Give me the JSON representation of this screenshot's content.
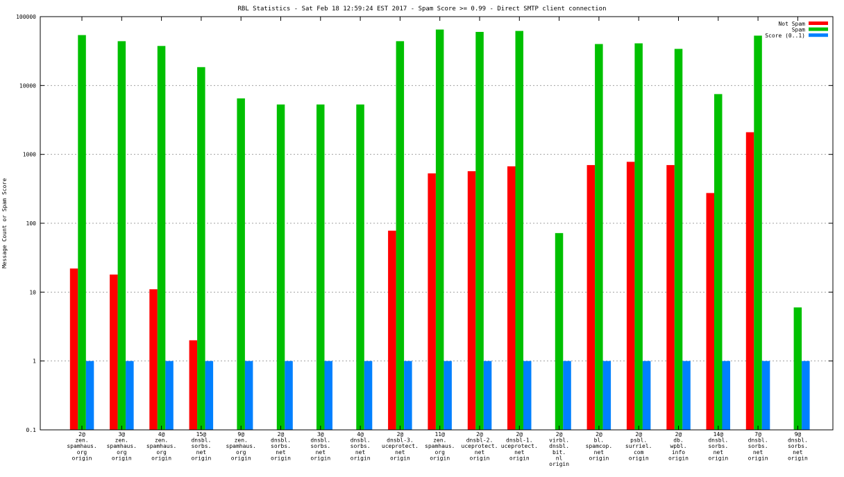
{
  "chart_data": {
    "type": "bar",
    "title": "RBL Statistics - Sat Feb 18 12:59:24 EST 2017 - Spam Score >= 0.99 - Direct SMTP client connection",
    "ylabel": "Message Count or Spam Score",
    "xlabel": "",
    "yscale": "log",
    "ylim": [
      0.1,
      100000
    ],
    "yticks": [
      "0.1",
      "1",
      "10",
      "100",
      "1000",
      "10000",
      "100000"
    ],
    "grid": true,
    "legend_position": "top-right",
    "categories": [
      [
        "2@",
        "zen.",
        "spamhaus.",
        "org",
        "origin"
      ],
      [
        "3@",
        "zen.",
        "spamhaus.",
        "org",
        "origin"
      ],
      [
        "4@",
        "zen.",
        "spamhaus.",
        "org",
        "origin"
      ],
      [
        "15@",
        "dnsbl.",
        "sorbs.",
        "net",
        "origin"
      ],
      [
        "9@",
        "zen.",
        "spamhaus.",
        "org",
        "origin"
      ],
      [
        "2@",
        "dnsbl.",
        "sorbs.",
        "net",
        "origin"
      ],
      [
        "3@",
        "dnsbl.",
        "sorbs.",
        "net",
        "origin"
      ],
      [
        "4@",
        "dnsbl.",
        "sorbs.",
        "net",
        "origin"
      ],
      [
        "2@",
        "dnsbl-3.",
        "uceprotect.",
        "net",
        "origin"
      ],
      [
        "11@",
        "zen.",
        "spamhaus.",
        "org",
        "origin"
      ],
      [
        "2@",
        "dnsbl-2.",
        "uceprotect.",
        "net",
        "origin"
      ],
      [
        "2@",
        "dnsbl-1.",
        "uceprotect.",
        "net",
        "origin"
      ],
      [
        "2@",
        "virbl.",
        "dnsbl.",
        "bit.",
        "nl",
        "origin"
      ],
      [
        "2@",
        "bl.",
        "spamcop.",
        "net",
        "origin"
      ],
      [
        "2@",
        "psbl.",
        "surriel.",
        "com",
        "origin"
      ],
      [
        "2@",
        "db.",
        "wpbl.",
        "info",
        "origin"
      ],
      [
        "14@",
        "dnsbl.",
        "sorbs.",
        "net",
        "origin"
      ],
      [
        "7@",
        "dnsbl.",
        "sorbs.",
        "net",
        "origin"
      ],
      [
        "9@",
        "dnsbl.",
        "sorbs.",
        "net",
        "origin"
      ]
    ],
    "series": [
      {
        "name": "Not Spam",
        "color": "#ff0000",
        "values": [
          22,
          18,
          11,
          2,
          null,
          null,
          null,
          null,
          78,
          530,
          570,
          670,
          null,
          700,
          780,
          700,
          275,
          2100,
          null
        ]
      },
      {
        "name": "Spam",
        "color": "#00c000",
        "values": [
          54000,
          44000,
          37500,
          18500,
          6500,
          5300,
          5300,
          5300,
          44000,
          65000,
          60000,
          62000,
          72,
          40000,
          41000,
          34000,
          7500,
          53000,
          6
        ]
      },
      {
        "name": "Score (0..1)",
        "color": "#0080ff",
        "values": [
          1,
          1,
          1,
          1,
          1,
          1,
          1,
          1,
          1,
          1,
          1,
          1,
          1,
          1,
          1,
          1,
          1,
          1,
          1
        ]
      }
    ]
  }
}
